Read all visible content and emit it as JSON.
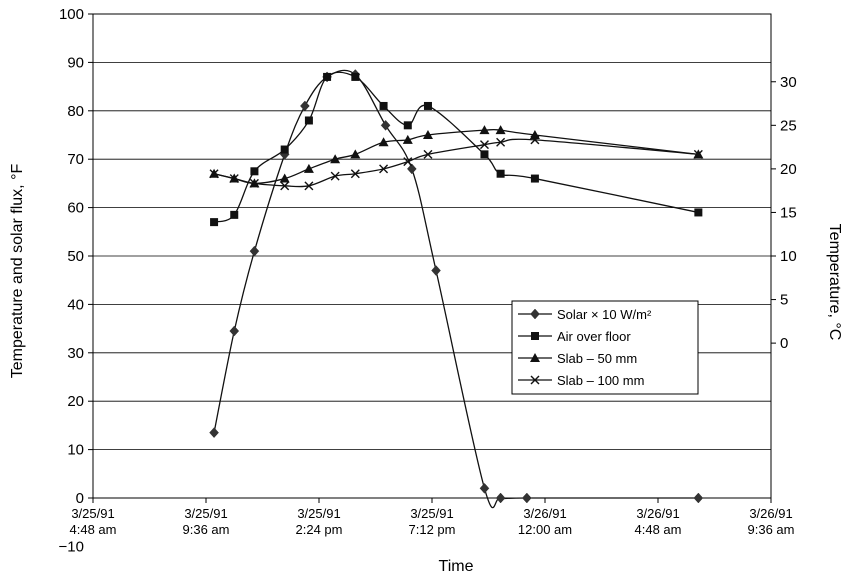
{
  "chart_data": {
    "type": "line",
    "title": "",
    "xlabel": "Time",
    "ylabel": "Temperature and solar flux, °F",
    "y2label": "Temperature, °C",
    "ylim": [
      -10,
      100
    ],
    "y_ticks": [
      "100",
      "90",
      "80",
      "70",
      "60",
      "50",
      "40",
      "30",
      "20",
      "10",
      "0",
      "−10"
    ],
    "y2_ticks": [
      "30",
      "25",
      "20",
      "15",
      "10",
      "5",
      "0"
    ],
    "x_ticks": [
      [
        "3/25/91",
        "4:48 am"
      ],
      [
        "3/25/91",
        "9:36 am"
      ],
      [
        "3/25/91",
        "2:24 pm"
      ],
      [
        "3/25/91",
        "7:12 pm"
      ],
      [
        "3/26/91",
        "12:00 am"
      ],
      [
        "3/26/91",
        "4:48 am"
      ],
      [
        "3/26/91",
        "9:36 am"
      ]
    ],
    "grid": true,
    "legend_position": "right",
    "series": [
      {
        "name": "Solar × 10 W/m²",
        "marker": "diamond",
        "points": [
          [
            6.0,
            13.5
          ],
          [
            7.0,
            34.5
          ],
          [
            8.0,
            51
          ],
          [
            9.5,
            71
          ],
          [
            10.5,
            81
          ],
          [
            11.6,
            87
          ],
          [
            13.0,
            87.5
          ],
          [
            14.5,
            77
          ],
          [
            15.8,
            68
          ],
          [
            17.0,
            47
          ],
          [
            19.4,
            2
          ],
          [
            20.2,
            0
          ],
          [
            21.5,
            0
          ],
          [
            30.0,
            0
          ]
        ]
      },
      {
        "name": "Air over floor",
        "marker": "square",
        "points": [
          [
            6.0,
            57
          ],
          [
            7.0,
            58.5
          ],
          [
            8.0,
            67.5
          ],
          [
            9.5,
            72
          ],
          [
            10.7,
            78
          ],
          [
            11.6,
            87
          ],
          [
            13.0,
            87
          ],
          [
            14.4,
            81
          ],
          [
            15.6,
            77
          ],
          [
            16.6,
            81
          ],
          [
            19.4,
            71
          ],
          [
            20.2,
            67
          ],
          [
            21.9,
            66
          ],
          [
            30.0,
            59
          ]
        ]
      },
      {
        "name": "Slab – 50 mm",
        "marker": "triangle",
        "points": [
          [
            6.0,
            67
          ],
          [
            7.0,
            66
          ],
          [
            8.0,
            65
          ],
          [
            9.5,
            66
          ],
          [
            10.7,
            68
          ],
          [
            12.0,
            70
          ],
          [
            13.0,
            71
          ],
          [
            14.4,
            73.5
          ],
          [
            15.6,
            74
          ],
          [
            16.6,
            75
          ],
          [
            19.4,
            76
          ],
          [
            20.2,
            76
          ],
          [
            21.9,
            75
          ],
          [
            30.0,
            71
          ]
        ]
      },
      {
        "name": "Slab – 100 mm",
        "marker": "x",
        "points": [
          [
            6.0,
            67
          ],
          [
            7.0,
            66
          ],
          [
            8.0,
            65
          ],
          [
            9.5,
            64.5
          ],
          [
            10.7,
            64.5
          ],
          [
            12.0,
            66.5
          ],
          [
            13.0,
            67
          ],
          [
            14.4,
            68
          ],
          [
            15.6,
            69.5
          ],
          [
            16.6,
            71
          ],
          [
            19.4,
            73
          ],
          [
            20.2,
            73.5
          ],
          [
            21.9,
            74
          ],
          [
            30.0,
            71
          ]
        ]
      }
    ]
  }
}
